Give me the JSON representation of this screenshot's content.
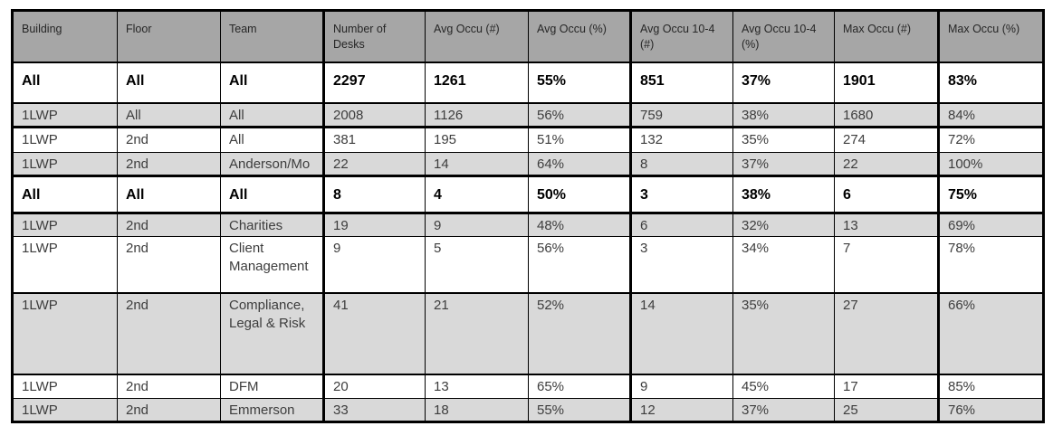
{
  "table": {
    "name": "desk-occupancy-report",
    "columns": [
      {
        "label": "Building"
      },
      {
        "label": "Floor"
      },
      {
        "label": "Team"
      },
      {
        "label": "Number of Desks"
      },
      {
        "label": "Avg Occu (#)"
      },
      {
        "label": "Avg Occu (%)"
      },
      {
        "label": "Avg Occu 10-4 (#)"
      },
      {
        "label": "Avg Occu 10-4 (%)"
      },
      {
        "label": "Max Occu (#)"
      },
      {
        "label": "Max Occu (%)"
      }
    ],
    "rows": [
      {
        "summary": true,
        "shaded": false,
        "cells": [
          "All",
          "All",
          "All",
          "2297",
          "1261",
          "55%",
          "851",
          "37%",
          "1901",
          "83%"
        ]
      },
      {
        "summary": false,
        "shaded": true,
        "cells": [
          "1LWP",
          "All",
          "All",
          "2008",
          "1126",
          "56%",
          "759",
          "38%",
          "1680",
          "84%"
        ]
      },
      {
        "summary": false,
        "shaded": false,
        "cells": [
          "1LWP",
          "2nd",
          "All",
          "381",
          "195",
          "51%",
          "132",
          "35%",
          "274",
          "72%"
        ]
      },
      {
        "summary": false,
        "shaded": true,
        "cells": [
          "1LWP",
          "2nd",
          "Anderson/Mo",
          "22",
          "14",
          "64%",
          "8",
          "37%",
          "22",
          "100%"
        ]
      },
      {
        "summary": true,
        "shaded": false,
        "cells": [
          "All",
          "All",
          "All",
          "8",
          "4",
          "50%",
          "3",
          "38%",
          "6",
          "75%"
        ]
      },
      {
        "summary": false,
        "shaded": true,
        "cells": [
          "1LWP",
          "2nd",
          "Charities",
          "19",
          "9",
          "48%",
          "6",
          "32%",
          "13",
          "69%"
        ]
      },
      {
        "summary": false,
        "shaded": false,
        "cells": [
          "1LWP",
          "2nd",
          "Client Management",
          "9",
          "5",
          "56%",
          "3",
          "34%",
          "7",
          "78%"
        ]
      },
      {
        "summary": false,
        "shaded": true,
        "cells": [
          "1LWP",
          "2nd",
          "Compliance, Legal & Risk",
          "41",
          "21",
          "52%",
          "14",
          "35%",
          "27",
          "66%"
        ]
      },
      {
        "summary": false,
        "shaded": false,
        "cells": [
          "1LWP",
          "2nd",
          "DFM",
          "20",
          "13",
          "65%",
          "9",
          "45%",
          "17",
          "85%"
        ]
      },
      {
        "summary": false,
        "shaded": true,
        "cells": [
          "1LWP",
          "2nd",
          "Emmerson",
          "33",
          "18",
          "55%",
          "12",
          "37%",
          "25",
          "76%"
        ]
      }
    ]
  },
  "colors": {
    "header_bg": "#a6a6a6",
    "shaded_row_bg": "#d9d9d9",
    "row_bg": "#ffffff",
    "border": "#000000",
    "data_text": "#3d3d3d",
    "summary_text": "#000000",
    "header_text": "#262626",
    "page_bg": "#ffffff"
  }
}
